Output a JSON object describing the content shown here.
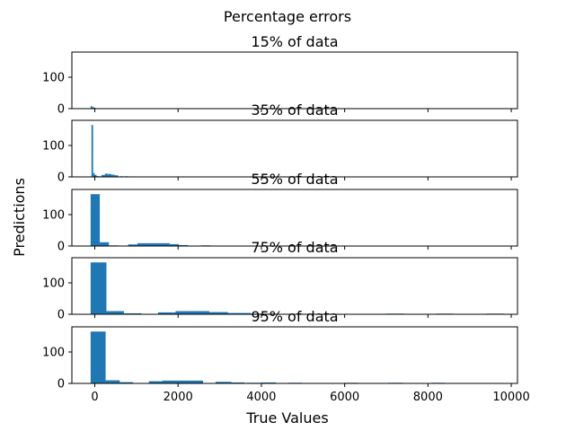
{
  "chart_data": {
    "type": "bar",
    "suptitle": "Percentage errors",
    "xlabel": "True Values",
    "ylabel": "Predictions",
    "xlim": [
      -550,
      10150
    ],
    "xticks": [
      0,
      2000,
      4000,
      6000,
      8000,
      10000
    ],
    "ylim": [
      0,
      180
    ],
    "yticks": [
      0,
      100
    ],
    "grid": false,
    "bar_color": "#1f77b4",
    "subplots": [
      {
        "title": "15% of data",
        "bins": [
          [
            -100,
            -60,
            8
          ],
          [
            -60,
            -20,
            5
          ],
          [
            -20,
            20,
            3
          ],
          [
            20,
            60,
            1
          ]
        ]
      },
      {
        "title": "35% of data",
        "bins": [
          [
            -80,
            -40,
            165
          ],
          [
            -40,
            0,
            12
          ],
          [
            0,
            40,
            6
          ],
          [
            40,
            80,
            3
          ],
          [
            80,
            160,
            2
          ],
          [
            160,
            240,
            6
          ],
          [
            240,
            320,
            10
          ],
          [
            320,
            400,
            9
          ],
          [
            400,
            480,
            7
          ],
          [
            480,
            560,
            5
          ],
          [
            600,
            680,
            2
          ],
          [
            720,
            800,
            2
          ],
          [
            860,
            940,
            1
          ],
          [
            1000,
            1080,
            1
          ],
          [
            1160,
            1240,
            1
          ]
        ]
      },
      {
        "title": "55% of data",
        "bins": [
          [
            -100,
            120,
            165
          ],
          [
            120,
            340,
            12
          ],
          [
            340,
            560,
            2
          ],
          [
            800,
            1020,
            5
          ],
          [
            1020,
            1800,
            9
          ],
          [
            1800,
            2020,
            6
          ],
          [
            2020,
            2240,
            3
          ],
          [
            2560,
            2780,
            2
          ]
        ]
      },
      {
        "title": "75% of data",
        "bins": [
          [
            -100,
            280,
            165
          ],
          [
            280,
            700,
            10
          ],
          [
            700,
            1120,
            3
          ],
          [
            1520,
            1940,
            6
          ],
          [
            1940,
            2750,
            10
          ],
          [
            2750,
            3200,
            7
          ],
          [
            3200,
            3750,
            4
          ],
          [
            3750,
            4350,
            2
          ],
          [
            7000,
            7420,
            2
          ],
          [
            8200,
            8600,
            2
          ],
          [
            9400,
            9820,
            2
          ]
        ]
      },
      {
        "title": "95% of data",
        "bins": [
          [
            -100,
            260,
            165
          ],
          [
            260,
            600,
            10
          ],
          [
            600,
            920,
            4
          ],
          [
            1300,
            1620,
            7
          ],
          [
            1620,
            2600,
            9
          ],
          [
            2900,
            3280,
            5
          ],
          [
            3280,
            3600,
            3
          ],
          [
            3650,
            3980,
            2
          ],
          [
            4000,
            4350,
            3
          ],
          [
            4650,
            4980,
            2
          ],
          [
            5980,
            6320,
            2
          ],
          [
            7050,
            7400,
            2
          ],
          [
            8080,
            8420,
            2
          ]
        ]
      }
    ]
  }
}
